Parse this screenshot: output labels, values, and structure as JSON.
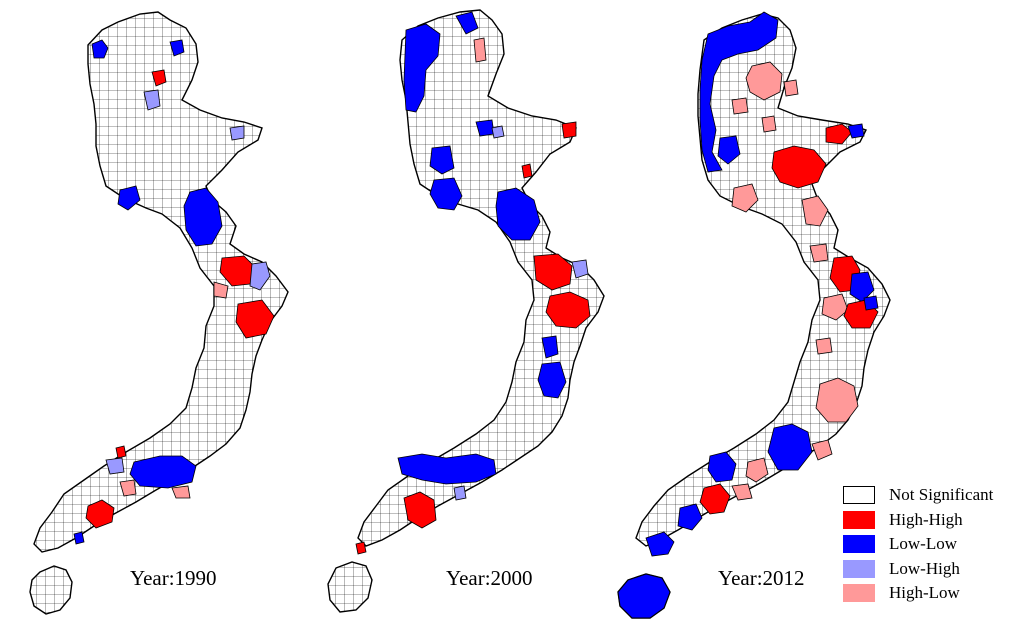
{
  "colors": {
    "not_significant": "#ffffff",
    "high_high": "#ff0000",
    "low_low": "#0000ff",
    "low_high": "#9999ff",
    "high_low": "#ff9999",
    "outline": "#000000"
  },
  "panels": [
    {
      "year_label": "Year:1990"
    },
    {
      "year_label": "Year:2000"
    },
    {
      "year_label": "Year:2012"
    }
  ],
  "legend": {
    "items": [
      {
        "label": "Not Significant",
        "color": "#ffffff"
      },
      {
        "label": "High-High",
        "color": "#ff0000"
      },
      {
        "label": "Low-Low",
        "color": "#0000ff"
      },
      {
        "label": "Low-High",
        "color": "#9999ff"
      },
      {
        "label": "High-Low",
        "color": "#ff9999"
      }
    ]
  }
}
